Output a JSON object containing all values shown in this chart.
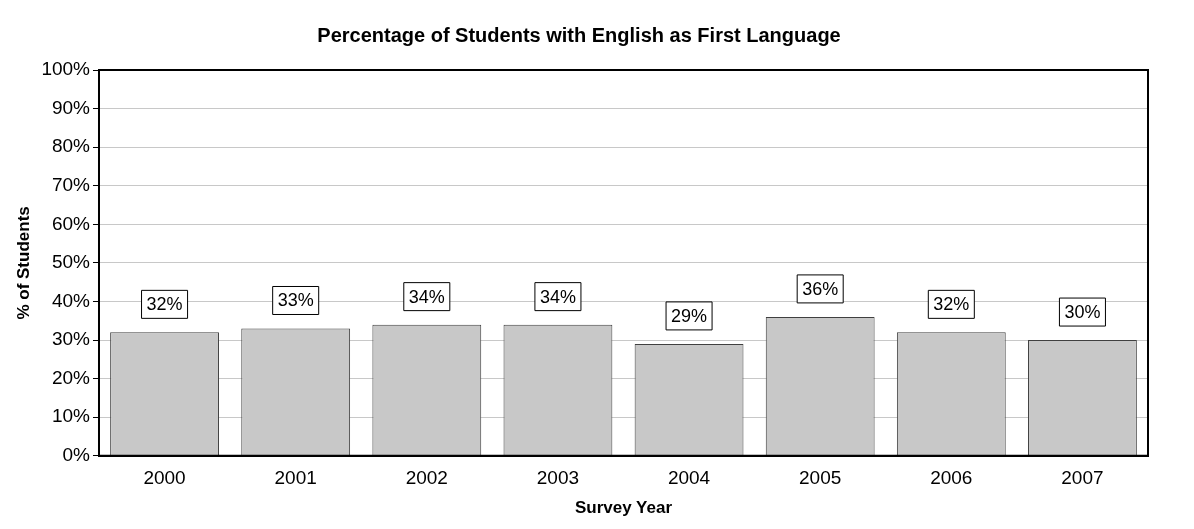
{
  "chart_data": {
    "type": "bar",
    "title": "Percentage of Students with English as First Language",
    "xlabel": "Survey Year",
    "ylabel": "% of Students",
    "categories": [
      "2000",
      "2001",
      "2002",
      "2003",
      "2004",
      "2005",
      "2006",
      "2007"
    ],
    "values": [
      32,
      33,
      34,
      34,
      29,
      36,
      32,
      30
    ],
    "value_labels": [
      "32%",
      "33%",
      "34%",
      "34%",
      "29%",
      "36%",
      "32%",
      "30%"
    ],
    "color": "#c8c8c8",
    "ylim": [
      0,
      100
    ],
    "yticks": [
      {
        "value": 0,
        "label": "0%"
      },
      {
        "value": 10,
        "label": "10%"
      },
      {
        "value": 20,
        "label": "20%"
      },
      {
        "value": 30,
        "label": "30%"
      },
      {
        "value": 40,
        "label": "40%"
      },
      {
        "value": 50,
        "label": "50%"
      },
      {
        "value": 60,
        "label": "60%"
      },
      {
        "value": 70,
        "label": "70%"
      },
      {
        "value": 80,
        "label": "80%"
      },
      {
        "value": 90,
        "label": "90%"
      },
      {
        "value": 100,
        "label": "100%"
      }
    ],
    "grid": "y",
    "legend": false
  }
}
